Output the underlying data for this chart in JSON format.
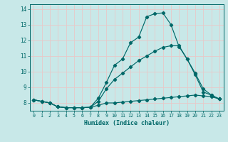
{
  "title": "",
  "xlabel": "Humidex (Indice chaleur)",
  "background_color": "#c8e8e8",
  "grid_color": "#e8c8c8",
  "line_color": "#006868",
  "xlim": [
    -0.5,
    23.5
  ],
  "ylim": [
    7.5,
    14.3
  ],
  "x": [
    0,
    1,
    2,
    3,
    4,
    5,
    6,
    7,
    8,
    9,
    10,
    11,
    12,
    13,
    14,
    15,
    16,
    17,
    18,
    19,
    20,
    21,
    22,
    23
  ],
  "line1": [
    8.2,
    8.1,
    8.0,
    7.75,
    7.7,
    7.7,
    7.7,
    7.72,
    8.3,
    9.3,
    10.4,
    10.8,
    11.85,
    12.2,
    13.5,
    13.7,
    13.75,
    13.0,
    11.6,
    10.8,
    9.8,
    8.7,
    8.5,
    8.25
  ],
  "line2": [
    8.2,
    8.1,
    8.0,
    7.75,
    7.7,
    7.7,
    7.7,
    7.72,
    7.85,
    8.0,
    8.0,
    8.05,
    8.1,
    8.15,
    8.2,
    8.25,
    8.3,
    8.35,
    8.4,
    8.45,
    8.5,
    8.45,
    8.4,
    8.25
  ],
  "line3": [
    8.2,
    8.1,
    8.0,
    7.75,
    7.7,
    7.7,
    7.7,
    7.72,
    8.1,
    8.9,
    9.5,
    9.9,
    10.3,
    10.7,
    11.0,
    11.3,
    11.55,
    11.65,
    11.65,
    10.8,
    9.9,
    8.9,
    8.5,
    8.25
  ],
  "ytick_values": [
    8,
    9,
    10,
    11,
    12,
    13,
    14
  ],
  "xtick_labels": [
    "0",
    "1",
    "2",
    "3",
    "4",
    "5",
    "6",
    "7",
    "8",
    "9",
    "10",
    "11",
    "12",
    "13",
    "14",
    "15",
    "16",
    "17",
    "18",
    "19",
    "20",
    "21",
    "22",
    "23"
  ]
}
